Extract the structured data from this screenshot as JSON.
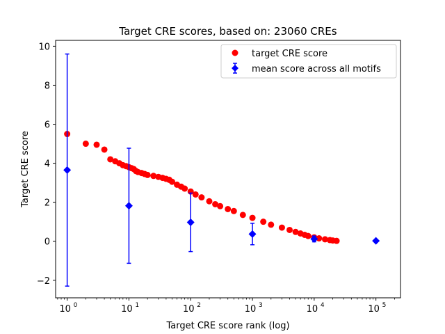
{
  "chart_data": {
    "type": "scatter",
    "title": "Target CRE scores, based on: 23060 CREs",
    "xlabel": "Target CRE score rank (log)",
    "ylabel": "Target CRE score",
    "xscale": "log",
    "xlim": [
      0.65,
      250000
    ],
    "ylim": [
      -2.9,
      10.3
    ],
    "x_ticks": [
      {
        "value": 1,
        "base": "10",
        "exp": "0"
      },
      {
        "value": 10,
        "base": "10",
        "exp": "1"
      },
      {
        "value": 100,
        "base": "10",
        "exp": "2"
      },
      {
        "value": 1000,
        "base": "10",
        "exp": "3"
      },
      {
        "value": 10000,
        "base": "10",
        "exp": "4"
      },
      {
        "value": 100000,
        "base": "10",
        "exp": "5"
      }
    ],
    "y_ticks": [
      {
        "value": -2,
        "label": "−2"
      },
      {
        "value": 0,
        "label": "0"
      },
      {
        "value": 2,
        "label": "2"
      },
      {
        "value": 4,
        "label": "4"
      },
      {
        "value": 6,
        "label": "6"
      },
      {
        "value": 8,
        "label": "8"
      },
      {
        "value": 10,
        "label": "10"
      }
    ],
    "legend_position": "top-right",
    "grid": false,
    "series": [
      {
        "name": "target CRE score",
        "marker": "circle",
        "color": "#ff0000",
        "points": [
          [
            1,
            5.5
          ],
          [
            2,
            5.0
          ],
          [
            3,
            4.95
          ],
          [
            4,
            4.7
          ],
          [
            5,
            4.2
          ],
          [
            6,
            4.1
          ],
          [
            7,
            4.0
          ],
          [
            8,
            3.9
          ],
          [
            9,
            3.85
          ],
          [
            10,
            3.8
          ],
          [
            11,
            3.75
          ],
          [
            12,
            3.7
          ],
          [
            13,
            3.6
          ],
          [
            14,
            3.55
          ],
          [
            16,
            3.5
          ],
          [
            18,
            3.45
          ],
          [
            20,
            3.4
          ],
          [
            25,
            3.35
          ],
          [
            30,
            3.3
          ],
          [
            35,
            3.25
          ],
          [
            40,
            3.2
          ],
          [
            45,
            3.15
          ],
          [
            50,
            3.05
          ],
          [
            60,
            2.9
          ],
          [
            70,
            2.8
          ],
          [
            80,
            2.7
          ],
          [
            100,
            2.55
          ],
          [
            120,
            2.4
          ],
          [
            150,
            2.25
          ],
          [
            200,
            2.05
          ],
          [
            250,
            1.9
          ],
          [
            300,
            1.8
          ],
          [
            400,
            1.65
          ],
          [
            500,
            1.55
          ],
          [
            700,
            1.35
          ],
          [
            1000,
            1.2
          ],
          [
            1500,
            1.0
          ],
          [
            2000,
            0.85
          ],
          [
            3000,
            0.7
          ],
          [
            4000,
            0.58
          ],
          [
            5000,
            0.48
          ],
          [
            6000,
            0.4
          ],
          [
            7000,
            0.33
          ],
          [
            8000,
            0.27
          ],
          [
            10000,
            0.2
          ],
          [
            12000,
            0.15
          ],
          [
            15000,
            0.1
          ],
          [
            18000,
            0.06
          ],
          [
            20000,
            0.04
          ],
          [
            23060,
            0.02
          ]
        ]
      },
      {
        "name": "mean score across all motifs",
        "marker": "diamond",
        "color": "#0000ff",
        "points": [
          {
            "x": 1,
            "y": 3.65,
            "yerr": 5.95
          },
          {
            "x": 10,
            "y": 1.82,
            "yerr": 2.95
          },
          {
            "x": 100,
            "y": 0.97,
            "yerr": 1.5
          },
          {
            "x": 1000,
            "y": 0.37,
            "yerr": 0.55
          },
          {
            "x": 10000,
            "y": 0.12,
            "yerr": 0.15
          },
          {
            "x": 100000,
            "y": 0.02,
            "yerr": 0.0
          }
        ]
      }
    ]
  }
}
